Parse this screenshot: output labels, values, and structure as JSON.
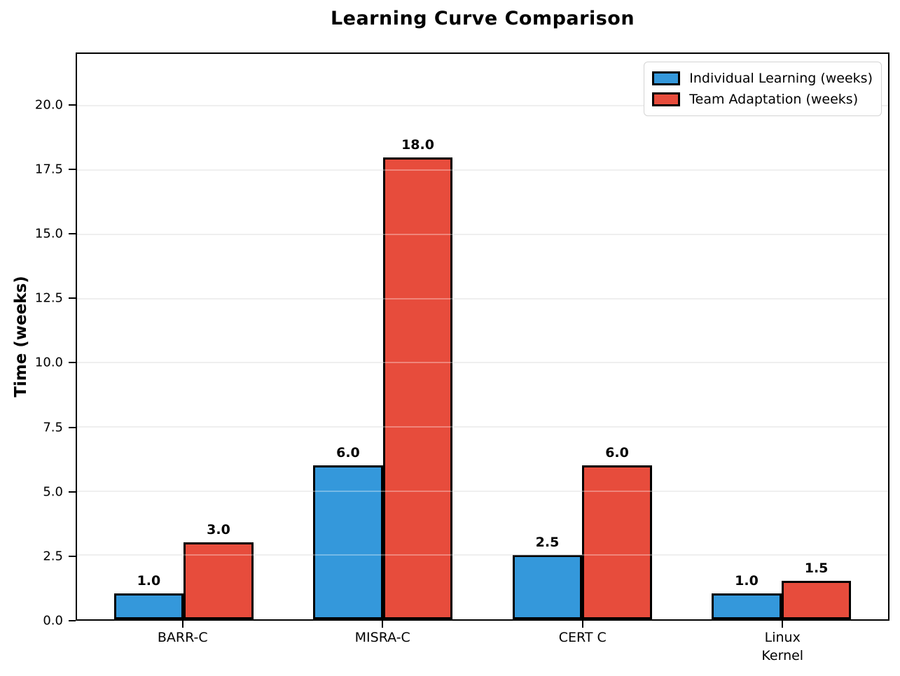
{
  "chart_data": {
    "type": "bar",
    "title": "Learning Curve Comparison",
    "ylabel": "Time (weeks)",
    "xlabel": "",
    "categories": [
      "BARR-C",
      "MISRA-C",
      "CERT C",
      "Linux\nKernel"
    ],
    "series": [
      {
        "name": "Individual Learning (weeks)",
        "color": "#3498db",
        "values": [
          1.0,
          6.0,
          2.5,
          1.0
        ]
      },
      {
        "name": "Team Adaptation (weeks)",
        "color": "#e74c3c",
        "values": [
          3.0,
          18.0,
          6.0,
          1.5
        ]
      }
    ],
    "ylim": [
      0,
      22
    ],
    "yticks": [
      0.0,
      2.5,
      5.0,
      7.5,
      10.0,
      12.5,
      15.0,
      17.5,
      20.0
    ],
    "grid": true,
    "legend_position": "upper right",
    "bar_edge_color": "#000000",
    "grid_color": "#e8e8e8",
    "background_color": "#ffffff",
    "value_labels": [
      "1.0",
      "3.0",
      "6.0",
      "18.0",
      "2.5",
      "6.0",
      "1.0",
      "1.5"
    ]
  }
}
